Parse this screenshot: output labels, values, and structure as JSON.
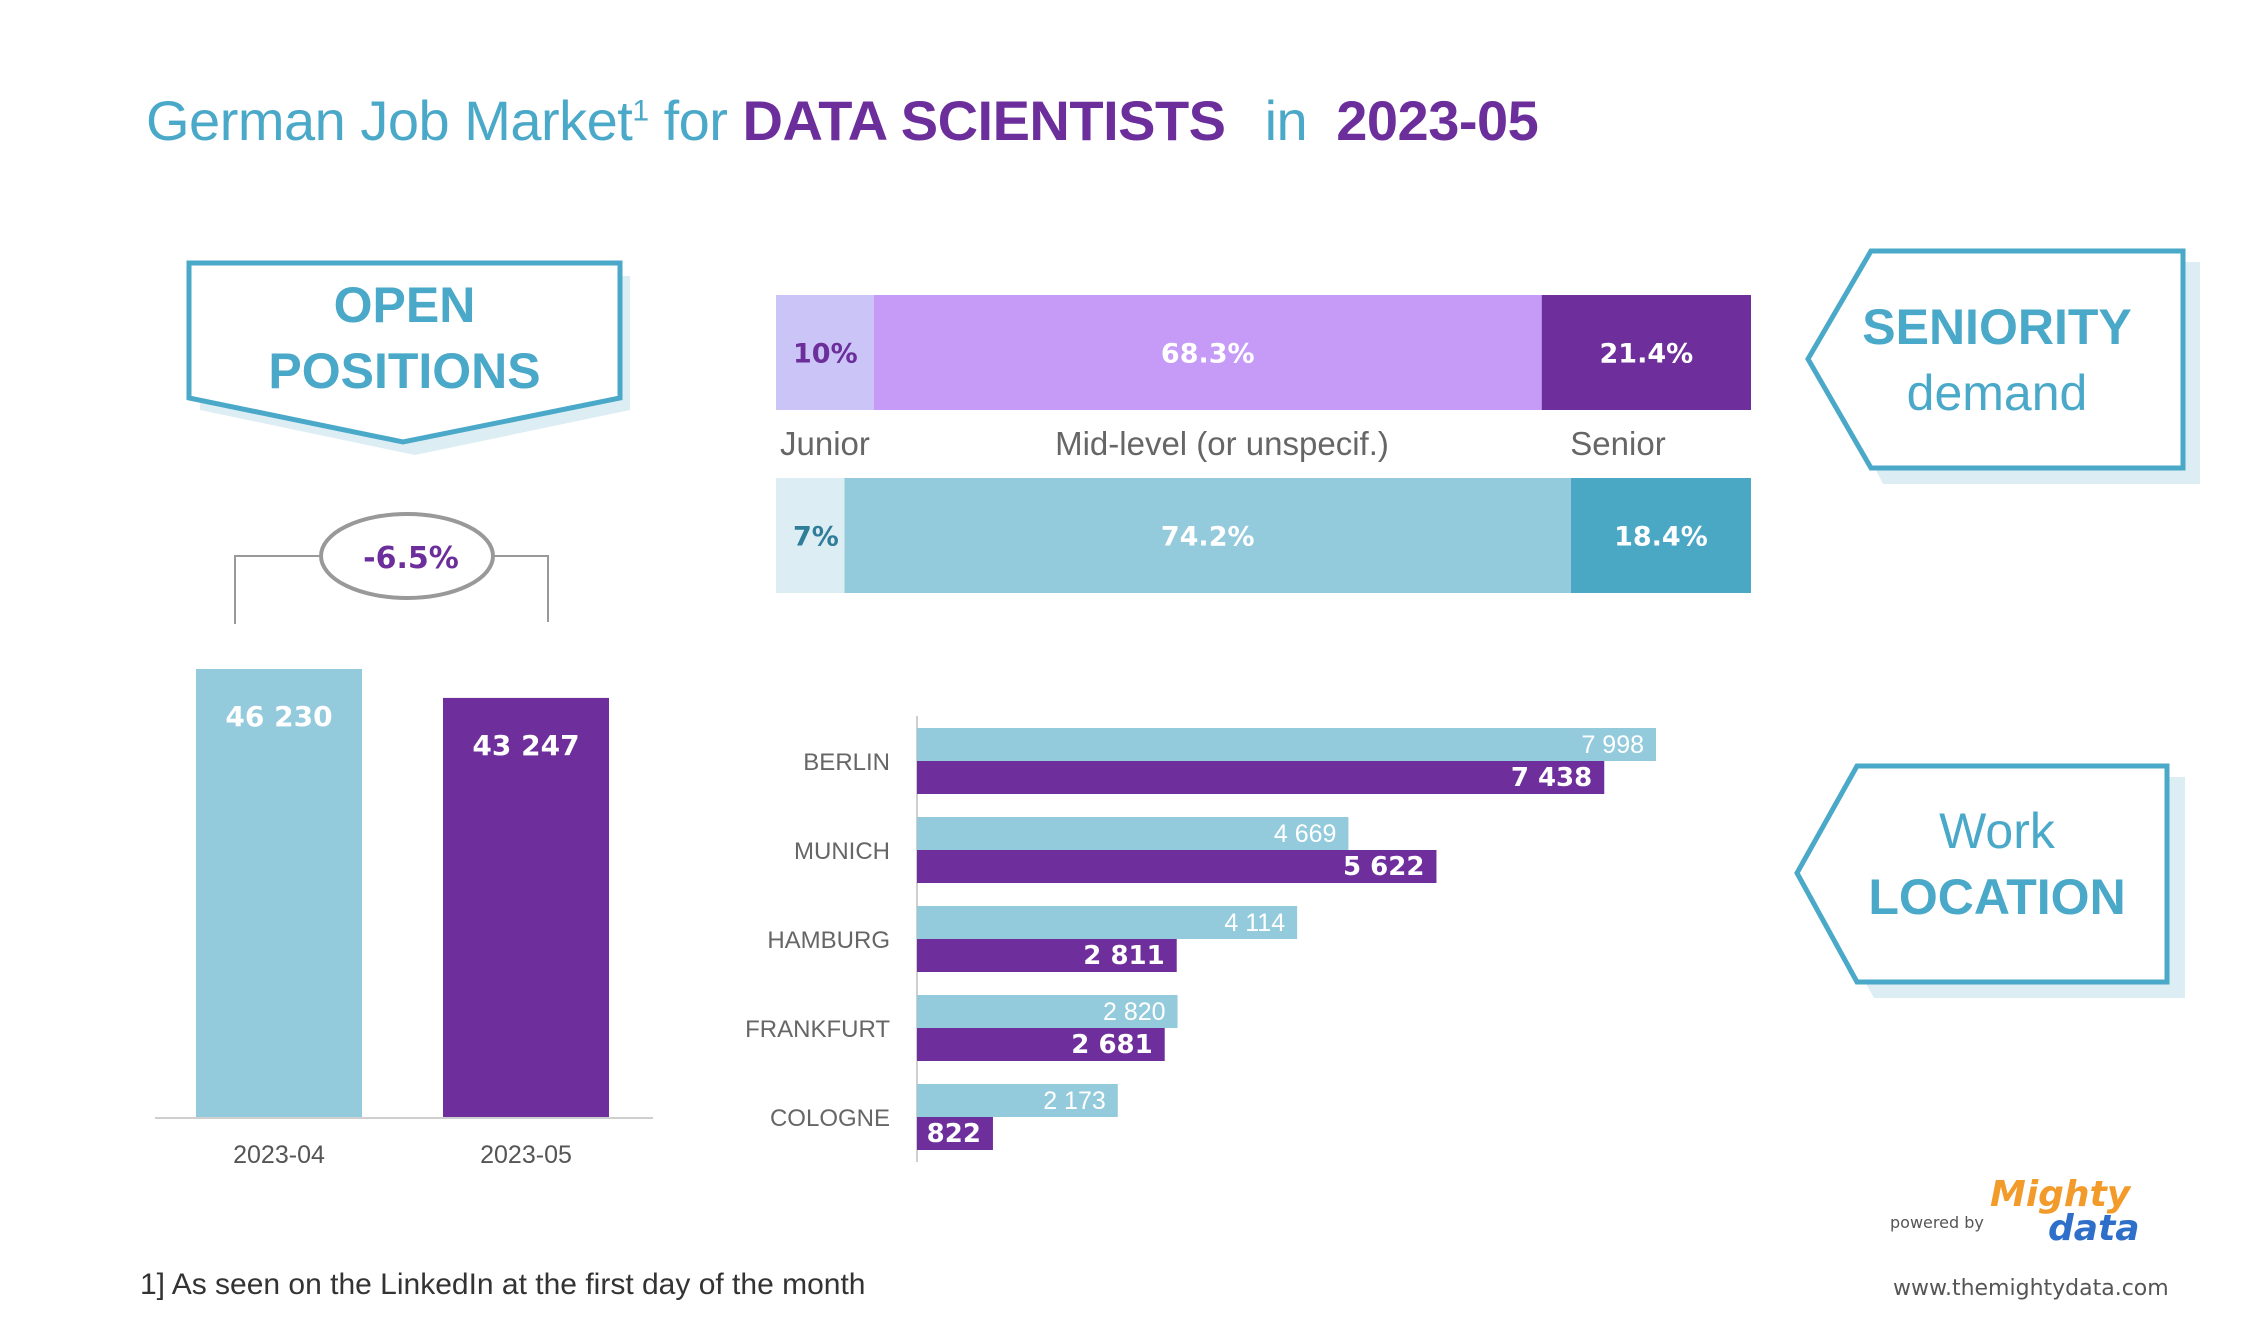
{
  "title": {
    "prefix": "German Job Market",
    "footnote_mark": "1",
    "connector": "for",
    "subject": "DATA SCIENTISTS",
    "in_word": "in",
    "month": "2023-05"
  },
  "callouts": {
    "open_positions": [
      "OPEN",
      "POSITIONS"
    ],
    "seniority": [
      "SENIORITY",
      "demand"
    ],
    "location": [
      "Work",
      "LOCATION"
    ]
  },
  "change_badge": "-6.5%",
  "colors": {
    "prev": "#94cbdc",
    "curr": "#6e2f9c",
    "accent": "#4aa8c8",
    "junior_curr": "#cbc4f7",
    "mid_curr": "#c69bf8",
    "senior_curr": "#6e2f9c",
    "junior_prev": "#dcedf4",
    "mid_prev": "#94cbdc",
    "senior_prev": "#4ba8c5"
  },
  "footnote": "1] As seen on the LinkedIn at the first day of the month",
  "branding": {
    "powered_by": "powered by",
    "brand_top": "Mighty",
    "brand_bottom": "data",
    "website": "www.themightydata.com"
  },
  "chart_data": [
    {
      "type": "bar",
      "categories": [
        "2023-04",
        "2023-05"
      ],
      "values": [
        46230,
        43247
      ],
      "value_labels": [
        "46 230",
        "43 247"
      ]
    },
    {
      "type": "bar",
      "orientation": "horizontal-stacked-100",
      "categories": [
        "Junior",
        "Mid-level (or unspecif.)",
        "Senior"
      ],
      "series": [
        {
          "values": [
            10,
            68.3,
            21.4
          ],
          "labels": [
            "10%",
            "68.3%",
            "21.4%"
          ]
        },
        {
          "values": [
            7,
            74.2,
            18.4
          ],
          "labels": [
            "7%",
            "74.2%",
            "18.4%"
          ]
        }
      ]
    },
    {
      "type": "bar",
      "orientation": "horizontal",
      "categories": [
        "BERLIN",
        "MUNICH",
        "HAMBURG",
        "FRANKFURT",
        "COLOGNE"
      ],
      "series": [
        {
          "values": [
            7998,
            4669,
            4114,
            2820,
            2173
          ],
          "labels": [
            "7 998",
            "4 669",
            "4 114",
            "2 820",
            "2 173"
          ]
        },
        {
          "values": [
            7438,
            5622,
            2811,
            2681,
            822
          ],
          "labels": [
            "7 438",
            "5 622",
            "2 811",
            "2 681",
            "822"
          ]
        }
      ]
    }
  ]
}
